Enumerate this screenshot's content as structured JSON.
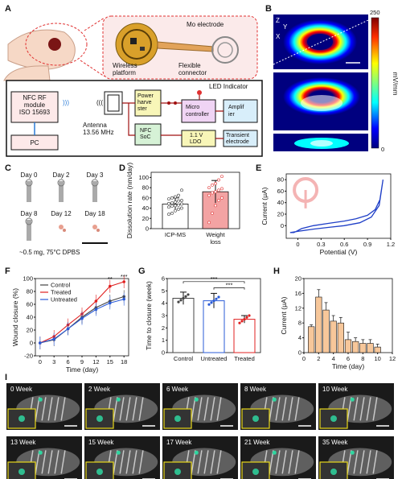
{
  "panels": {
    "A": "A",
    "B": "B",
    "C": "C",
    "D": "D",
    "E": "E",
    "F": "F",
    "G": "G",
    "H": "H",
    "I": "I"
  },
  "panel_a": {
    "mo_electrode": "Mo electrode",
    "wireless_platform": "Wireless\nplatform",
    "flexible_connector": "Flexible\nconnector",
    "led_indicator": "LED Indicator",
    "nfc_rf": "NFC RF\nmodule\nISO 15693",
    "pc": "PC",
    "antenna": "Antenna\n13.56 MHz",
    "power_harvester": "Power\nharve\nster",
    "nfc_soc": "NFC\nSoC",
    "micro_controller": "Micro\ncontroller",
    "ldo": "1.1 V\nLDO",
    "amplifier": "Amplif\nier",
    "transient_electrode": "Transient\nelectrode"
  },
  "panel_b": {
    "colorbar_max": "250",
    "colorbar_min": "0",
    "colorbar_unit": "mV/mm",
    "axis_z": "Z",
    "axis_y": "Y",
    "axis_x": "X",
    "colors": [
      "#00007f",
      "#0000ff",
      "#00a0ff",
      "#00ffff",
      "#7fff7f",
      "#ffff00",
      "#ff7f00",
      "#ff0000",
      "#7f0000"
    ]
  },
  "panel_c": {
    "days": [
      "Day 0",
      "Day 2",
      "Day 3",
      "Day 8",
      "Day 12",
      "Day 18"
    ],
    "caption": "~0.5 mg, 75°C DPBS"
  },
  "chart_data": [
    {
      "panel": "D",
      "type": "bar",
      "categories": [
        "ICP-MS",
        "Weight\nloss"
      ],
      "values": [
        48,
        72
      ],
      "errors": [
        12,
        22
      ],
      "bar_colors": [
        "#ffffff",
        "#f3a3a3"
      ],
      "ylabel": "Dissolution rate (nm/day)",
      "ylim": [
        0,
        110
      ],
      "yticks": [
        0,
        10,
        20,
        30,
        40,
        50,
        60,
        70,
        80,
        90,
        100,
        110
      ],
      "points": [
        [
          28,
          30,
          35,
          38,
          40,
          42,
          44,
          45,
          46,
          48,
          49,
          50,
          52,
          54,
          55,
          58,
          60,
          62,
          65,
          75
        ],
        [
          12,
          30,
          45,
          55,
          60,
          65,
          70,
          72,
          75,
          78,
          80,
          85,
          88,
          95,
          102
        ]
      ]
    },
    {
      "panel": "E",
      "type": "line",
      "xlabel": "Potential (V)",
      "ylabel": "Current (μA)",
      "xlim": [
        -0.15,
        1.2
      ],
      "ylim": [
        -22,
        90
      ],
      "xticks": [
        0,
        0.3,
        0.6,
        0.9,
        1.2
      ],
      "xticklabels": [
        "0",
        "0.3",
        "0.6",
        "0.9",
        "1.2"
      ],
      "yticks": [
        0,
        20,
        40,
        60,
        80
      ],
      "series": [
        {
          "x": [
            -0.1,
            0,
            0.2,
            0.4,
            0.6,
            0.8,
            0.95,
            1.05,
            1.1,
            1.06,
            1.0,
            0.9,
            0.75,
            0.6,
            0.4,
            0.2,
            0.05,
            -0.05,
            -0.1
          ],
          "y": [
            -12,
            -10,
            -6,
            -3,
            0,
            5,
            15,
            35,
            80,
            45,
            28,
            18,
            12,
            8,
            4,
            0,
            -5,
            -12,
            -12
          ]
        }
      ]
    },
    {
      "panel": "F",
      "type": "line",
      "xlabel": "Time (day)",
      "ylabel": "Wound closure (%)",
      "xlim": [
        -1,
        19
      ],
      "ylim": [
        -20,
        100
      ],
      "xticks": [
        0,
        3,
        6,
        9,
        12,
        15,
        18
      ],
      "yticks": [
        -20,
        0,
        20,
        40,
        60,
        80,
        100
      ],
      "x": [
        0,
        3,
        6,
        9,
        12,
        15,
        18
      ],
      "series": [
        {
          "name": "Control",
          "color": "#444444",
          "values": [
            0,
            5,
            22,
            40,
            55,
            65,
            72
          ]
        },
        {
          "name": "Treated",
          "color": "#e02020",
          "values": [
            0,
            10,
            28,
            45,
            65,
            88,
            95
          ]
        },
        {
          "name": "Untreated",
          "color": "#2a5bd7",
          "values": [
            0,
            6,
            22,
            38,
            52,
            62,
            68
          ]
        }
      ],
      "annotations": [
        "**",
        "***"
      ]
    },
    {
      "panel": "G",
      "type": "bar",
      "categories": [
        "Control",
        "Untreated",
        "Treated"
      ],
      "values": [
        4.4,
        4.2,
        2.7
      ],
      "errors": [
        0.5,
        0.6,
        0.3
      ],
      "edge_colors": [
        "#444444",
        "#2a5bd7",
        "#e02020"
      ],
      "ylabel": "Time to closure (week)",
      "ylim": [
        0,
        6
      ],
      "yticks": [
        0,
        1,
        2,
        3,
        4,
        5,
        6
      ],
      "annotations": [
        "***",
        "***"
      ]
    },
    {
      "panel": "H",
      "type": "bar",
      "categories": [
        1,
        2,
        3,
        4,
        5,
        6,
        7,
        8,
        9,
        10
      ],
      "values": [
        7,
        15,
        11.5,
        8.5,
        8,
        3.5,
        3,
        2.5,
        2.5,
        1.5
      ],
      "errors": [
        0.5,
        2,
        2,
        1.5,
        1.5,
        2,
        1,
        1,
        1,
        0.8
      ],
      "color": "#f7c79a",
      "xlabel": "Time (day)",
      "ylabel": "Current (μA)",
      "ylim": [
        0,
        20
      ],
      "xticks": [
        0,
        2,
        4,
        6,
        8,
        10,
        12
      ],
      "yticks": [
        0,
        4,
        8,
        12,
        16,
        20
      ]
    }
  ],
  "panel_i": {
    "weeks": [
      "0 Week",
      "2 Week",
      "6 Week",
      "8 Week",
      "10 Week",
      "13 Week",
      "15 Week",
      "17 Week",
      "21 Week",
      "35 Week"
    ]
  }
}
